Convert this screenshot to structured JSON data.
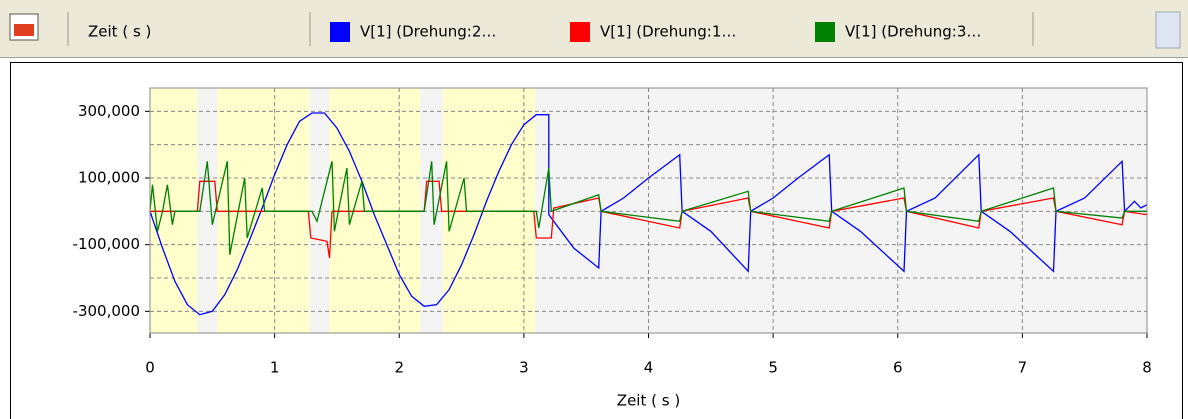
{
  "toolbar": {
    "x_field": "Zeit ( s )"
  },
  "chart_data": {
    "type": "line",
    "x_label": "Zeit ( s )",
    "xlim": [
      0,
      8
    ],
    "xticks": [
      0,
      1,
      2,
      3,
      4,
      5,
      6,
      7,
      8
    ],
    "ylim": [
      -365000,
      370000
    ],
    "yticks": [
      {
        "value": 300000,
        "label": "300,000"
      },
      {
        "value": 100000,
        "label": "100,000"
      },
      {
        "value": -100000,
        "label": "-100,000"
      },
      {
        "value": -300000,
        "label": "-300,000"
      }
    ],
    "ygrid": [
      300000,
      200000,
      100000,
      0,
      -100000,
      -200000,
      -300000
    ],
    "grid": true,
    "highlight_color": "#ffffcc",
    "highlight_ranges": [
      [
        0,
        0.38
      ],
      [
        0.54,
        1.28
      ],
      [
        1.44,
        2.17
      ],
      [
        2.35,
        3.09
      ]
    ],
    "series": [
      {
        "name": "V[1] (Drehung:2…",
        "color": "#0000ff",
        "x": [
          0,
          0.1,
          0.2,
          0.3,
          0.4,
          0.5,
          0.6,
          0.7,
          0.8,
          0.9,
          1.0,
          1.1,
          1.2,
          1.3,
          1.4,
          1.5,
          1.6,
          1.7,
          1.8,
          1.9,
          2.0,
          2.1,
          2.2,
          2.3,
          2.4,
          2.5,
          2.6,
          2.7,
          2.8,
          2.9,
          3.0,
          3.1,
          3.2,
          3.2,
          3.4,
          3.6,
          3.62,
          3.8,
          4.0,
          4.25,
          4.27,
          4.5,
          4.8,
          4.82,
          5.0,
          5.2,
          5.45,
          5.47,
          5.7,
          6.05,
          6.07,
          6.3,
          6.65,
          6.67,
          6.9,
          7.25,
          7.27,
          7.5,
          7.8,
          7.82,
          7.9,
          7.95,
          8.0
        ],
        "values": [
          0,
          -110000,
          -210000,
          -280000,
          -310000,
          -300000,
          -250000,
          -175000,
          -85000,
          10000,
          110000,
          200000,
          270000,
          295000,
          295000,
          250000,
          180000,
          90000,
          -10000,
          -100000,
          -190000,
          -255000,
          -285000,
          -280000,
          -235000,
          -160000,
          -70000,
          30000,
          120000,
          200000,
          260000,
          290000,
          290000,
          -10000,
          -110000,
          -170000,
          0,
          40000,
          100000,
          170000,
          0,
          -60000,
          -180000,
          0,
          40000,
          100000,
          170000,
          0,
          -60000,
          -180000,
          0,
          40000,
          170000,
          0,
          -60000,
          -180000,
          0,
          40000,
          150000,
          0,
          30000,
          10000,
          20000
        ]
      },
      {
        "name": "V[1] (Drehung:1…",
        "color": "#ff0000",
        "x": [
          0,
          0.38,
          0.4,
          0.52,
          0.54,
          1.27,
          1.29,
          1.42,
          1.44,
          1.46,
          2.2,
          2.22,
          2.32,
          2.34,
          3.08,
          3.1,
          3.22,
          3.24,
          3.6,
          3.62,
          4.25,
          4.27,
          4.8,
          4.82,
          5.45,
          5.47,
          6.05,
          6.07,
          6.65,
          6.67,
          7.25,
          7.27,
          7.8,
          7.82,
          8.0
        ],
        "values": [
          0,
          0,
          90000,
          90000,
          0,
          0,
          -80000,
          -90000,
          -140000,
          0,
          0,
          90000,
          90000,
          0,
          0,
          -80000,
          -80000,
          10000,
          40000,
          0,
          -50000,
          0,
          40000,
          0,
          -50000,
          0,
          40000,
          0,
          -50000,
          0,
          40000,
          0,
          -40000,
          0,
          -10000
        ]
      },
      {
        "name": "V[1] (Drehung:3…",
        "color": "#008000",
        "x": [
          0,
          0.02,
          0.06,
          0.1,
          0.14,
          0.18,
          0.2,
          0.4,
          0.46,
          0.5,
          0.62,
          0.64,
          0.76,
          0.78,
          0.9,
          0.92,
          1.3,
          1.34,
          1.46,
          1.48,
          1.58,
          1.6,
          1.7,
          1.72,
          2.2,
          2.26,
          2.28,
          2.38,
          2.4,
          2.52,
          2.54,
          3.1,
          3.12,
          3.2,
          3.22,
          3.6,
          3.62,
          4.25,
          4.27,
          4.8,
          4.82,
          5.45,
          5.47,
          6.05,
          6.07,
          6.65,
          6.67,
          7.25,
          7.27,
          7.8,
          7.82,
          8.0
        ],
        "values": [
          0,
          80000,
          -60000,
          0,
          80000,
          -40000,
          0,
          0,
          150000,
          -40000,
          150000,
          -130000,
          100000,
          -80000,
          70000,
          0,
          0,
          -30000,
          150000,
          -60000,
          130000,
          -40000,
          90000,
          0,
          0,
          150000,
          -40000,
          150000,
          -60000,
          100000,
          0,
          0,
          -50000,
          130000,
          0,
          50000,
          0,
          -30000,
          0,
          60000,
          0,
          -30000,
          0,
          70000,
          0,
          -30000,
          0,
          70000,
          0,
          -20000,
          0,
          0
        ]
      }
    ]
  }
}
